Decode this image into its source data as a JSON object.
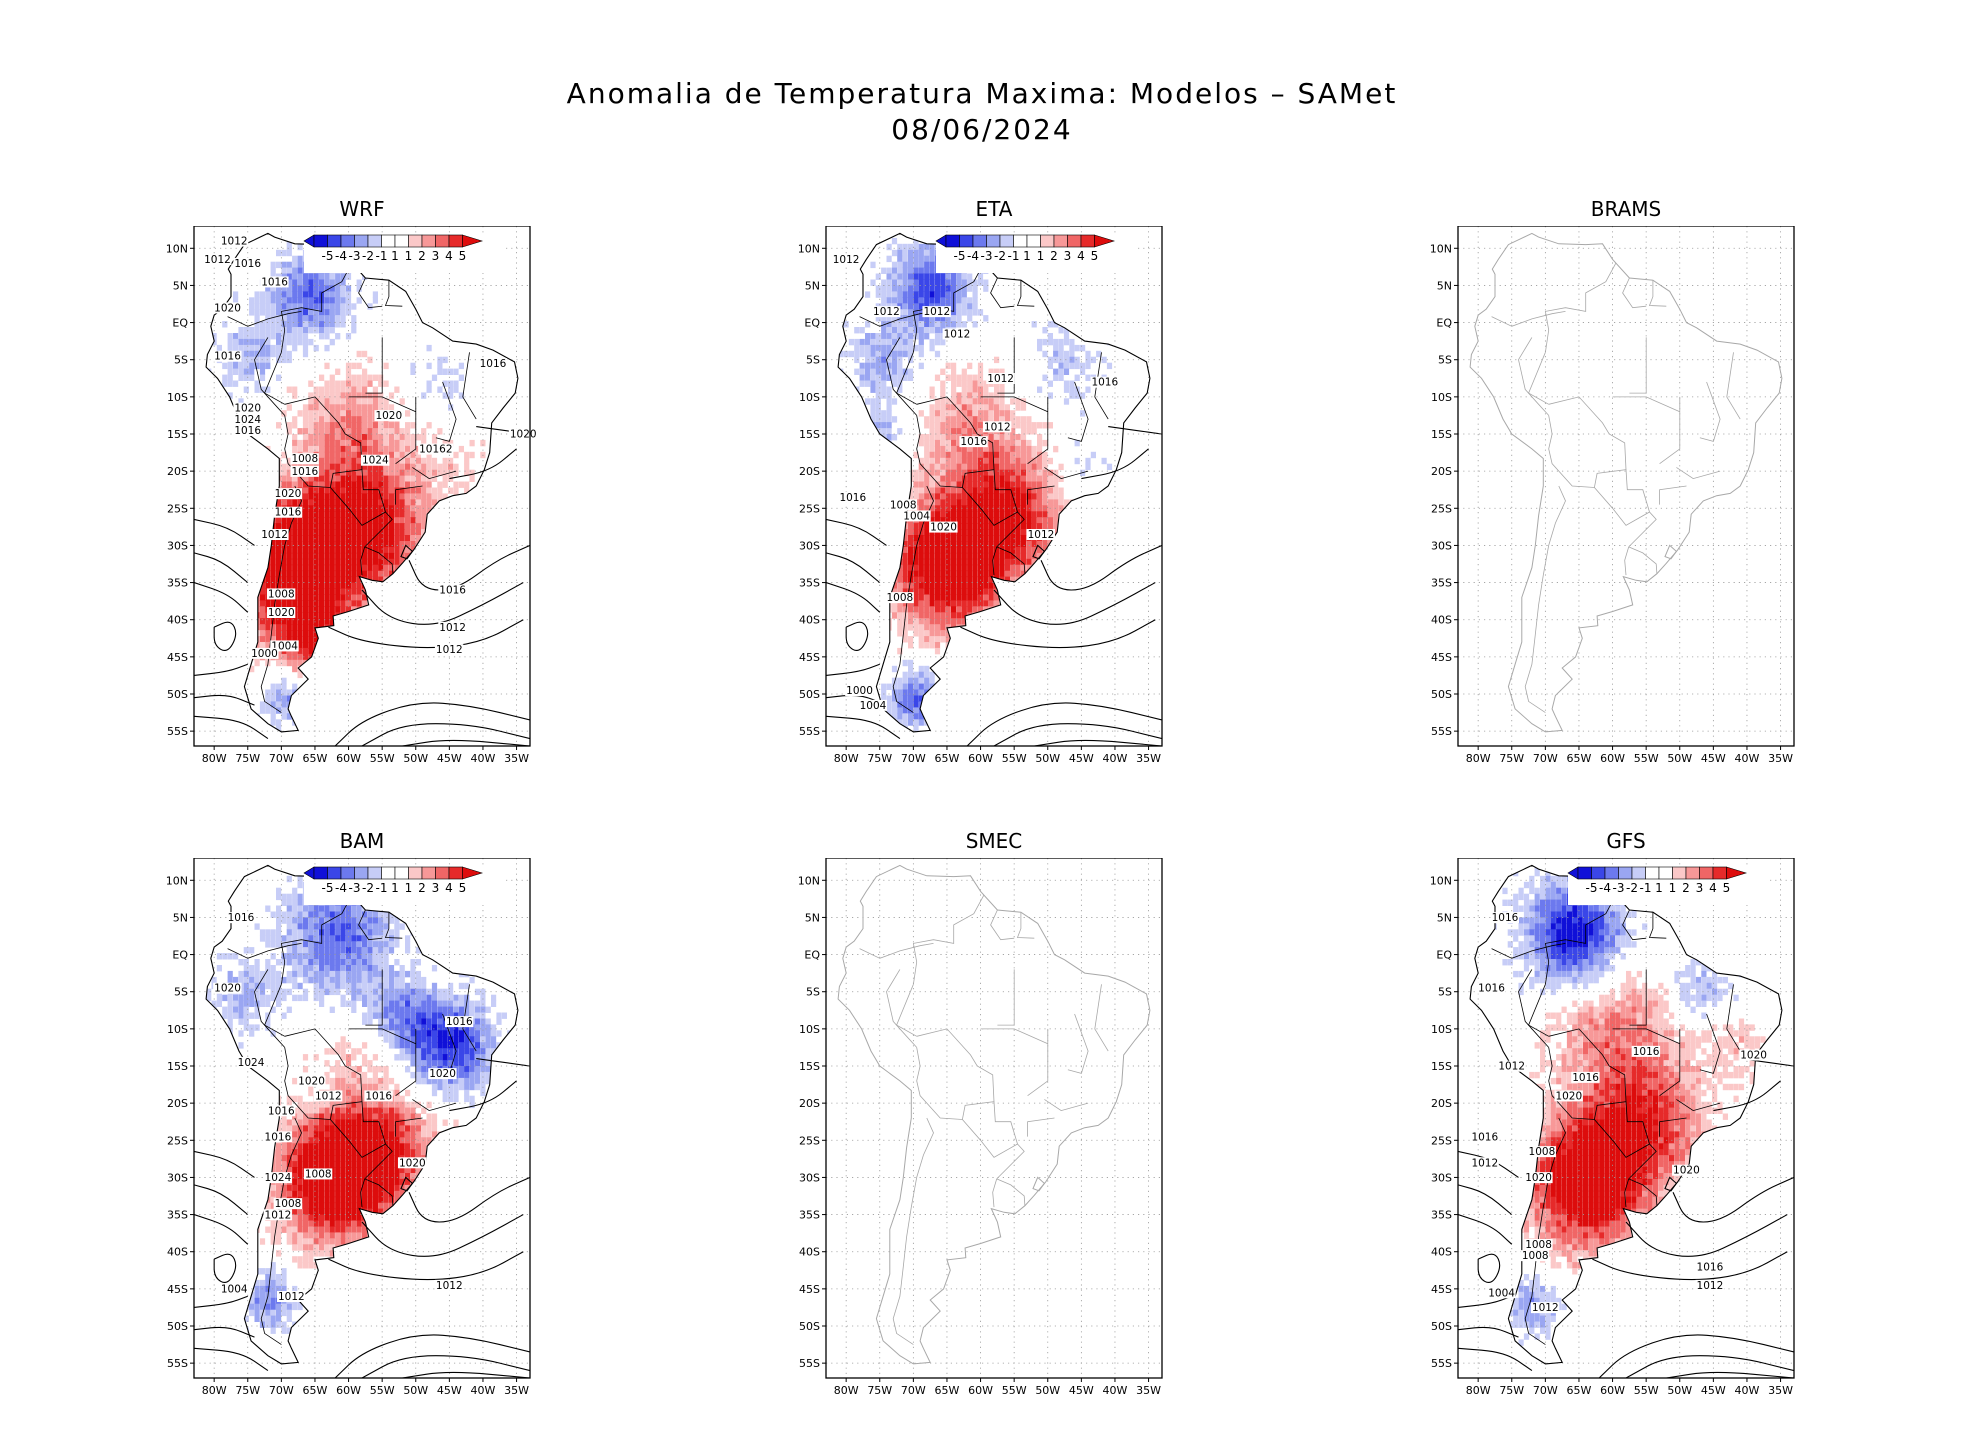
{
  "title": {
    "line1": "Anomalia de Temperatura Maxima: Modelos – SAMet",
    "line2": "08/06/2024"
  },
  "axes": {
    "lat_labels": [
      "10N",
      "5N",
      "EQ",
      "5S",
      "10S",
      "15S",
      "20S",
      "25S",
      "30S",
      "35S",
      "40S",
      "45S",
      "50S",
      "55S"
    ],
    "lon_labels": [
      "80W",
      "75W",
      "70W",
      "65W",
      "60W",
      "55W",
      "50W",
      "45W",
      "40W",
      "35W"
    ]
  },
  "colorbar": {
    "tick_labels": [
      "-5",
      "-4",
      "-3",
      "-2",
      "-1",
      "1",
      "1",
      "2",
      "3",
      "4",
      "5"
    ],
    "colors": [
      "#1010d8",
      "#3a46e8",
      "#6c79ee",
      "#9aa6f2",
      "#c7cdf7",
      "#ffffff",
      "#ffffff",
      "#fbc8c8",
      "#f79898",
      "#f06666",
      "#e62a2a",
      "#dd0c0c"
    ]
  },
  "panels": [
    {
      "id": "wrf",
      "name": "WRF",
      "has_data": true,
      "contours": [
        "1012",
        "1012",
        "1016",
        "1016",
        "1020",
        "1016",
        "1016",
        "1020",
        "1024",
        "1016",
        "1020",
        "1020",
        "10162",
        "1008",
        "1016",
        "1024",
        "1020",
        "1016",
        "1012",
        "1008",
        "1020",
        "1004",
        "1000",
        "1016",
        "1012",
        "1012"
      ]
    },
    {
      "id": "eta",
      "name": "ETA",
      "has_data": true,
      "contours": [
        "1012",
        "1012",
        "1012",
        "1012",
        "1012",
        "1016",
        "1012",
        "1016",
        "1016",
        "1008",
        "1004",
        "1020",
        "1012",
        "1008",
        "1000",
        "1004"
      ]
    },
    {
      "id": "brams",
      "name": "BRAMS",
      "has_data": false,
      "contours": []
    },
    {
      "id": "bam",
      "name": "BAM",
      "has_data": true,
      "contours": [
        "1016",
        "1020",
        "1016",
        "1020",
        "1024",
        "1020",
        "1012",
        "1016",
        "1016",
        "1016",
        "1024",
        "1008",
        "1020",
        "1008",
        "1012",
        "1004",
        "1012",
        "1012"
      ]
    },
    {
      "id": "smec",
      "name": "SMEC",
      "has_data": false,
      "contours": []
    },
    {
      "id": "gfs",
      "name": "GFS",
      "has_data": true,
      "contours": [
        "1016",
        "1016",
        "1016",
        "1020",
        "1012",
        "1016",
        "1020",
        "1016",
        "1012",
        "1008",
        "1020",
        "1020",
        "1008",
        "1008",
        "1016",
        "1012",
        "1004",
        "1012"
      ]
    }
  ]
}
